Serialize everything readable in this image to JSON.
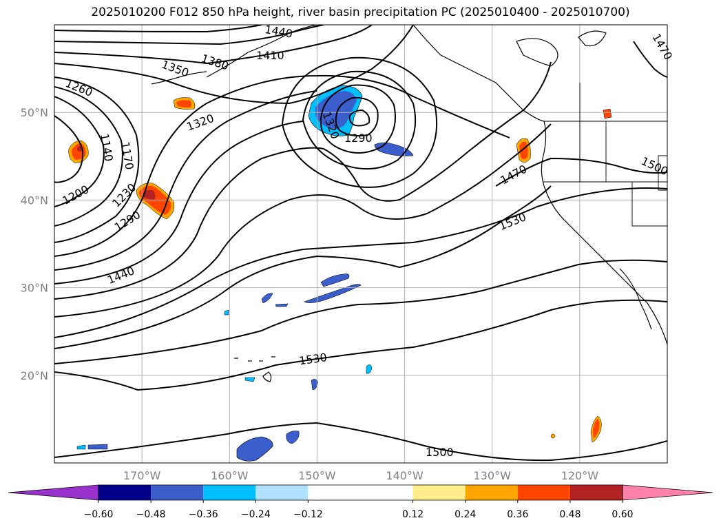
{
  "title": "2025010200 F012 850 hPa height, river basin precipitation PC (2025010400 - 2025010700)",
  "map": {
    "projection": "PlateCarree",
    "lon_range": [
      -180,
      -110
    ],
    "lat_range": [
      10,
      60
    ],
    "gridlines": true
  },
  "axes": {
    "lat_ticks": [
      {
        "value": 50,
        "label": "50°N"
      },
      {
        "value": 40,
        "label": "40°N"
      },
      {
        "value": 30,
        "label": "30°N"
      },
      {
        "value": 20,
        "label": "20°N"
      }
    ],
    "lon_ticks": [
      {
        "value": -170,
        "label": "170°W"
      },
      {
        "value": -160,
        "label": "160°W"
      },
      {
        "value": -150,
        "label": "150°W"
      },
      {
        "value": -140,
        "label": "140°W"
      },
      {
        "value": -130,
        "label": "130°W"
      },
      {
        "value": -120,
        "label": "120°W"
      }
    ]
  },
  "contour_labels": [
    "1440",
    "1410",
    "1380",
    "1350",
    "1260",
    "1320",
    "1320",
    "1290",
    "1170",
    "1140",
    "1200",
    "1230",
    "1290",
    "1440",
    "1470",
    "1470",
    "1530",
    "1500",
    "1530",
    "1500"
  ],
  "colorbar": {
    "levels": [
      -0.6,
      -0.48,
      -0.36,
      -0.24,
      -0.12,
      0.12,
      0.24,
      0.36,
      0.48,
      0.6
    ],
    "tick_labels": [
      "−0.60",
      "−0.48",
      "−0.36",
      "−0.24",
      "−0.12",
      "0.12",
      "0.24",
      "0.36",
      "0.48",
      "0.60"
    ],
    "colors": [
      "#9932cc",
      "#00008b",
      "#3a5fcd",
      "#00bfff",
      "#b0e2ff",
      "#ffffff",
      "#ffec8b",
      "#ffa500",
      "#ff4500",
      "#b22222",
      "#ff82ab"
    ],
    "extend": "both"
  }
}
